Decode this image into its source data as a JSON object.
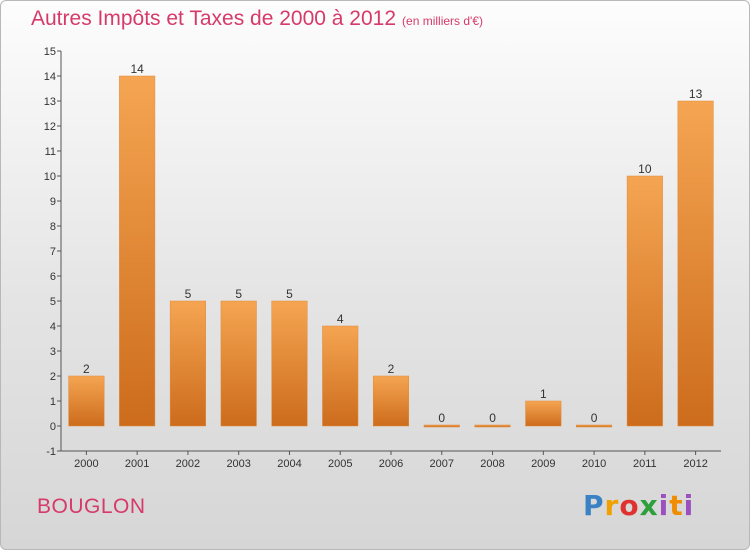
{
  "title": "Autres Impôts et Taxes de 2000 à 2012",
  "subtitle": "(en milliers d'€)",
  "location": "BOUGLON",
  "brand": [
    "P",
    "r",
    "o",
    "x",
    "i",
    "t",
    "i"
  ],
  "colors": {
    "bar": "#f0943a",
    "bar_dark": "#cc6c1c",
    "title": "#d63a6a",
    "axis": "#444444"
  },
  "chart_data": {
    "type": "bar",
    "categories": [
      "2000",
      "2001",
      "2002",
      "2003",
      "2004",
      "2005",
      "2006",
      "2007",
      "2008",
      "2009",
      "2010",
      "2011",
      "2012"
    ],
    "values": [
      2,
      14,
      5,
      5,
      5,
      4,
      2,
      0,
      0,
      1,
      0,
      10,
      13
    ],
    "data_labels": [
      "2",
      "14",
      "5",
      "5",
      "5",
      "4",
      "2",
      "0",
      "0",
      "1",
      "0",
      "10",
      "13"
    ],
    "yticks": [
      "-1",
      "0",
      "1",
      "2",
      "3",
      "4",
      "5",
      "6",
      "7",
      "8",
      "9",
      "10",
      "11",
      "12",
      "13",
      "14",
      "15"
    ],
    "ylim": [
      -1,
      15
    ],
    "grid": false
  }
}
